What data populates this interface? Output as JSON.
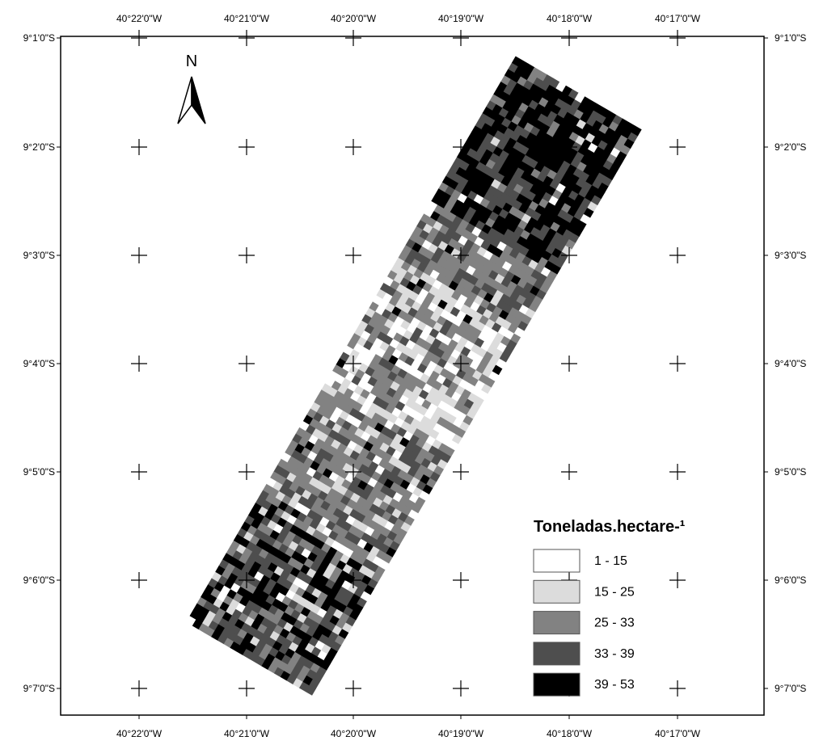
{
  "map": {
    "north_label": "N",
    "longitude_labels": [
      "40°22'0\"W",
      "40°21'0\"W",
      "40°20'0\"W",
      "40°19'0\"W",
      "40°18'0\"W",
      "40°17'0\"W"
    ],
    "latitude_labels": [
      "9°1'0\"S",
      "9°2'0\"S",
      "9°3'0\"S",
      "9°4'0\"S",
      "9°5'0\"S",
      "9°6'0\"S",
      "9°7'0\"S"
    ],
    "legend": {
      "title": "Toneladas.hectare-¹",
      "classes": [
        {
          "label": "1 - 15",
          "color": "#ffffff"
        },
        {
          "label": "15 - 25",
          "color": "#dcdcdc"
        },
        {
          "label": "25 - 33",
          "color": "#828282"
        },
        {
          "label": "33 - 39",
          "color": "#4e4e4e"
        },
        {
          "label": "39 - 53",
          "color": "#000000"
        }
      ]
    }
  }
}
